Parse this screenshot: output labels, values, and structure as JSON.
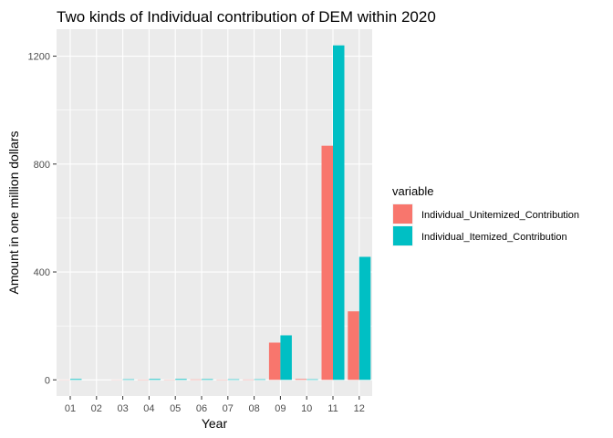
{
  "chart_data": {
    "type": "bar",
    "title": "Two kinds of Individual contribution of DEM within 2020",
    "xlabel": "Year",
    "ylabel": "Amount in one million dollars",
    "categories": [
      "01",
      "02",
      "03",
      "04",
      "05",
      "06",
      "07",
      "08",
      "09",
      "10",
      "11",
      "12"
    ],
    "series": [
      {
        "name": "Individual_Unitemized_Contribution",
        "color": "#F8766D",
        "values": [
          0.5,
          0,
          0.5,
          1,
          0.8,
          1.5,
          1,
          1.2,
          138,
          3,
          868,
          254
        ]
      },
      {
        "name": "Individual_Itemized_Contribution",
        "color": "#00BFC4",
        "values": [
          3,
          0,
          2,
          3,
          3,
          2.5,
          2,
          2,
          165,
          2,
          1240,
          456
        ]
      }
    ],
    "ylim": [
      -60,
      1300
    ],
    "y_ticks": [
      0,
      400,
      800,
      1200
    ],
    "y_tick_labels": [
      "0",
      "400",
      "800",
      "1200"
    ],
    "legend_title": "variable",
    "legend_position": "right",
    "grid": true,
    "panel_background": "#EBEBEB",
    "grid_color": "#FFFFFF"
  }
}
